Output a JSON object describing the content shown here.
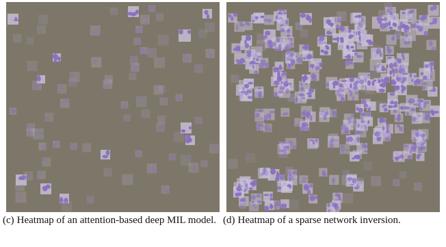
{
  "figures": [
    {
      "tag": "(c)",
      "caption": "Heatmap of an attention-based deep MIL model.",
      "background_color": "#7d776a",
      "tile_color": "#8a6fc0"
    },
    {
      "tag": "(d)",
      "caption": "Heatmap of a sparse network inversion.",
      "background_color": "#7d776a",
      "tile_color": "#8a6fc0"
    }
  ]
}
